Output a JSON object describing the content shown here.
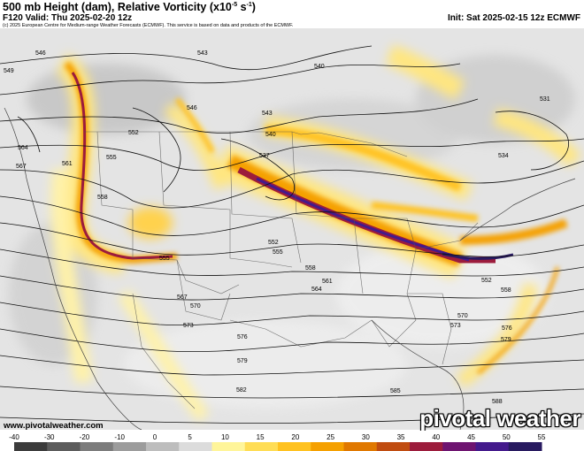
{
  "header": {
    "title": "500 mb Height (dam), Relative Vorticity (x10",
    "title_exp": "-5",
    "title_unit": " s",
    "title_exp2": "-1",
    "title_end": ")",
    "valid": "F120 Valid: Thu 2025-02-20 12z",
    "init": "Init: Sat 2025-02-15 12z ECMWF",
    "credit": "(c) 2025 European Centre for Medium-range Weather Forecasts (ECMWF). This service is based on data and products of the ECMWF."
  },
  "footer": {
    "url": "www.pivotalweather.com",
    "logo": "pivotal weather"
  },
  "colorbar": {
    "ticks": [
      "-40",
      "-30",
      "-20",
      "-10",
      "0",
      "5",
      "10",
      "15",
      "20",
      "25",
      "30",
      "35",
      "40",
      "45",
      "50",
      "55"
    ],
    "colors": [
      "#3c3c3c",
      "#5c5c5c",
      "#7c7c7c",
      "#9c9c9c",
      "#bdbdbd",
      "#dcdcdc",
      "#fff59a",
      "#ffdd55",
      "#ffc220",
      "#f5a000",
      "#e07800",
      "#c04c10",
      "#9c1c3c",
      "#6e1470",
      "#441a8c",
      "#281a60"
    ]
  },
  "height_labels": [
    "549",
    "543",
    "546",
    "540",
    "537",
    "540",
    "552",
    "555",
    "558",
    "564",
    "561",
    "567",
    "555",
    "552",
    "558",
    "564",
    "567",
    "570",
    "573",
    "576",
    "579",
    "582",
    "585",
    "588",
    "570",
    "573",
    "576",
    "579",
    "561",
    "543",
    "534",
    "531",
    "555",
    "552",
    "558",
    "546"
  ]
}
